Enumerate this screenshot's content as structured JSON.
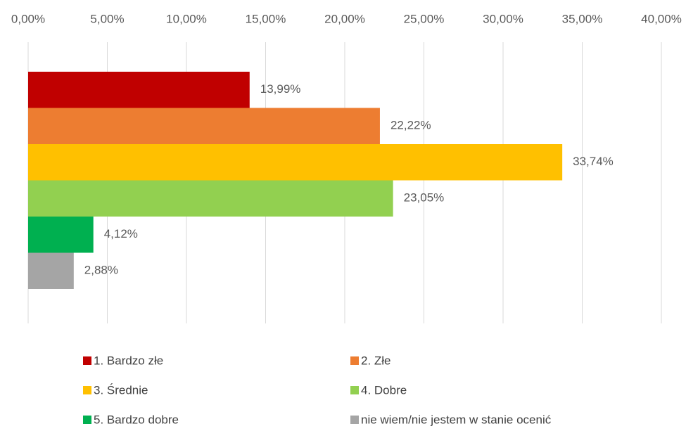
{
  "chart_data": {
    "type": "bar",
    "orientation": "horizontal",
    "xlim": [
      0,
      40
    ],
    "xticks": [
      {
        "value": 0,
        "label": "0,00%"
      },
      {
        "value": 5,
        "label": "5,00%"
      },
      {
        "value": 10,
        "label": "10,00%"
      },
      {
        "value": 15,
        "label": "15,00%"
      },
      {
        "value": 20,
        "label": "20,00%"
      },
      {
        "value": 25,
        "label": "25,00%"
      },
      {
        "value": 30,
        "label": "30,00%"
      },
      {
        "value": 35,
        "label": "35,00%"
      },
      {
        "value": 40,
        "label": "40,00%"
      }
    ],
    "grid": true,
    "legend": "bottom",
    "series": [
      {
        "name": "1. Bardzo złe",
        "color": "#c00000",
        "values": [
          13.99
        ],
        "value_labels": [
          "13,99%"
        ]
      },
      {
        "name": "2. Złe",
        "color": "#ed7d31",
        "values": [
          22.22
        ],
        "value_labels": [
          "22,22%"
        ]
      },
      {
        "name": "3. Średnie",
        "color": "#ffc000",
        "values": [
          33.74
        ],
        "value_labels": [
          "33,74%"
        ]
      },
      {
        "name": "4. Dobre",
        "color": "#92d050",
        "values": [
          23.05
        ],
        "value_labels": [
          "23,05%"
        ]
      },
      {
        "name": "5. Bardzo dobre",
        "color": "#00b050",
        "values": [
          4.12
        ],
        "value_labels": [
          "4,12%"
        ]
      },
      {
        "name": "nie wiem/nie jestem w stanie ocenić",
        "color": "#a5a5a5",
        "values": [
          2.88
        ],
        "value_labels": [
          "2,88%"
        ]
      }
    ]
  }
}
